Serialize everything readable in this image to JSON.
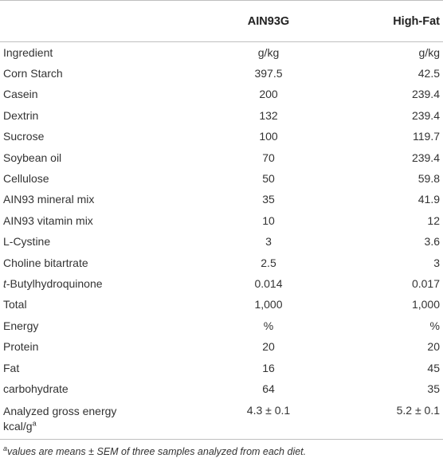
{
  "table": {
    "headers": [
      "",
      "AIN93G",
      "High-Fat"
    ],
    "rows": [
      {
        "ingredient": "Ingredient",
        "ain93g": "g/kg",
        "high_fat": "g/kg"
      },
      {
        "ingredient": "Corn Starch",
        "ain93g": "397.5",
        "high_fat": "42.5"
      },
      {
        "ingredient": "Casein",
        "ain93g": "200",
        "high_fat": "239.4"
      },
      {
        "ingredient": "Dextrin",
        "ain93g": "132",
        "high_fat": "239.4"
      },
      {
        "ingredient": "Sucrose",
        "ain93g": "100",
        "high_fat": "119.7"
      },
      {
        "ingredient": "Soybean oil",
        "ain93g": "70",
        "high_fat": "239.4"
      },
      {
        "ingredient": "Cellulose",
        "ain93g": "50",
        "high_fat": "59.8"
      },
      {
        "ingredient": "AIN93 mineral mix",
        "ain93g": "35",
        "high_fat": "41.9"
      },
      {
        "ingredient": "AIN93 vitamin mix",
        "ain93g": "10",
        "high_fat": "12"
      },
      {
        "ingredient": "L-Cystine",
        "ain93g": "3",
        "high_fat": "3.6"
      },
      {
        "ingredient": "Choline bitartrate",
        "ain93g": "2.5",
        "high_fat": "3"
      },
      {
        "ingredient_prefix": "t",
        "ingredient": "-Butylhydroquinone",
        "ain93g": "0.014",
        "high_fat": "0.017"
      },
      {
        "ingredient": "Total",
        "ain93g": "1,000",
        "high_fat": "1,000"
      },
      {
        "ingredient": "Energy",
        "ain93g": "%",
        "high_fat": "%"
      },
      {
        "ingredient": "Protein",
        "ain93g": "20",
        "high_fat": "20"
      },
      {
        "ingredient": "Fat",
        "ain93g": "16",
        "high_fat": "45"
      },
      {
        "ingredient": "carbohydrate",
        "ain93g": "64",
        "high_fat": "35"
      },
      {
        "ingredient_line1": "Analyzed gross energy",
        "ingredient_line2": "kcal/g",
        "superscript": "a",
        "ain93g": "4.3 ± 0.1",
        "high_fat": "5.2 ± 0.1"
      }
    ]
  },
  "footnote": {
    "marker": "a",
    "text": "values are means ± SEM of three samples analyzed from each diet."
  }
}
